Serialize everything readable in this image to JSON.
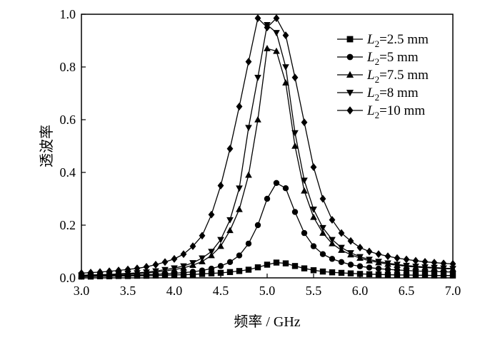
{
  "chart_data": {
    "type": "line",
    "title": "",
    "xlabel": "频率 / GHz",
    "ylabel": "透波率",
    "xlim": [
      3.0,
      7.0
    ],
    "ylim": [
      0.0,
      1.0
    ],
    "xticks": [
      "3.0",
      "3.5",
      "4.0",
      "4.5",
      "5.0",
      "5.5",
      "6.0",
      "6.5",
      "7.0"
    ],
    "yticks": [
      "0.0",
      "0.2",
      "0.4",
      "0.6",
      "0.8",
      "1.0"
    ],
    "grid": false,
    "legend_position": "top-right",
    "x": [
      3.0,
      3.1,
      3.2,
      3.3,
      3.4,
      3.5,
      3.6,
      3.7,
      3.8,
      3.9,
      4.0,
      4.1,
      4.2,
      4.3,
      4.4,
      4.5,
      4.6,
      4.7,
      4.8,
      4.9,
      5.0,
      5.1,
      5.2,
      5.3,
      5.4,
      5.5,
      5.6,
      5.7,
      5.8,
      5.9,
      6.0,
      6.1,
      6.2,
      6.3,
      6.4,
      6.5,
      6.6,
      6.7,
      6.8,
      6.9,
      7.0
    ],
    "series": [
      {
        "name_prefix": "L",
        "name_sub": "2",
        "name_suffix": "=2.5 mm",
        "marker": "square",
        "values": [
          0.005,
          0.005,
          0.006,
          0.006,
          0.007,
          0.007,
          0.008,
          0.008,
          0.009,
          0.01,
          0.011,
          0.012,
          0.013,
          0.015,
          0.017,
          0.019,
          0.022,
          0.026,
          0.031,
          0.04,
          0.05,
          0.058,
          0.055,
          0.045,
          0.036,
          0.029,
          0.024,
          0.021,
          0.019,
          0.017,
          0.015,
          0.014,
          0.013,
          0.012,
          0.011,
          0.011,
          0.01,
          0.01,
          0.009,
          0.009,
          0.009
        ]
      },
      {
        "name_prefix": "L",
        "name_sub": "2",
        "name_suffix": "=5 mm",
        "marker": "circle",
        "values": [
          0.005,
          0.006,
          0.007,
          0.008,
          0.009,
          0.01,
          0.011,
          0.012,
          0.014,
          0.015,
          0.017,
          0.02,
          0.023,
          0.028,
          0.035,
          0.045,
          0.06,
          0.085,
          0.13,
          0.2,
          0.3,
          0.36,
          0.34,
          0.25,
          0.17,
          0.12,
          0.09,
          0.072,
          0.06,
          0.05,
          0.044,
          0.039,
          0.035,
          0.032,
          0.03,
          0.028,
          0.026,
          0.025,
          0.024,
          0.023,
          0.022
        ]
      },
      {
        "name_prefix": "L",
        "name_sub": "2",
        "name_suffix": "=7.5 mm",
        "marker": "triangle-up",
        "values": [
          0.008,
          0.009,
          0.01,
          0.011,
          0.013,
          0.014,
          0.016,
          0.019,
          0.022,
          0.026,
          0.031,
          0.038,
          0.048,
          0.062,
          0.085,
          0.12,
          0.18,
          0.26,
          0.39,
          0.6,
          0.87,
          0.86,
          0.74,
          0.5,
          0.33,
          0.23,
          0.17,
          0.13,
          0.105,
          0.088,
          0.075,
          0.065,
          0.058,
          0.052,
          0.048,
          0.044,
          0.041,
          0.039,
          0.037,
          0.035,
          0.034
        ]
      },
      {
        "name_prefix": "L",
        "name_sub": "2",
        "name_suffix": "=8 mm",
        "marker": "triangle-down",
        "values": [
          0.01,
          0.011,
          0.012,
          0.013,
          0.015,
          0.017,
          0.019,
          0.022,
          0.026,
          0.031,
          0.037,
          0.045,
          0.057,
          0.075,
          0.1,
          0.145,
          0.22,
          0.34,
          0.57,
          0.76,
          0.96,
          0.93,
          0.8,
          0.55,
          0.37,
          0.26,
          0.19,
          0.145,
          0.115,
          0.095,
          0.08,
          0.07,
          0.062,
          0.056,
          0.051,
          0.047,
          0.044,
          0.041,
          0.039,
          0.037,
          0.035
        ]
      },
      {
        "name_prefix": "L",
        "name_sub": "2",
        "name_suffix": "=10 mm",
        "marker": "diamond",
        "values": [
          0.018,
          0.02,
          0.022,
          0.025,
          0.028,
          0.032,
          0.036,
          0.042,
          0.05,
          0.06,
          0.072,
          0.09,
          0.12,
          0.16,
          0.24,
          0.35,
          0.49,
          0.65,
          0.82,
          0.985,
          0.95,
          0.985,
          0.92,
          0.76,
          0.59,
          0.42,
          0.3,
          0.22,
          0.17,
          0.14,
          0.115,
          0.1,
          0.09,
          0.082,
          0.075,
          0.07,
          0.065,
          0.061,
          0.058,
          0.055,
          0.053
        ]
      }
    ]
  }
}
